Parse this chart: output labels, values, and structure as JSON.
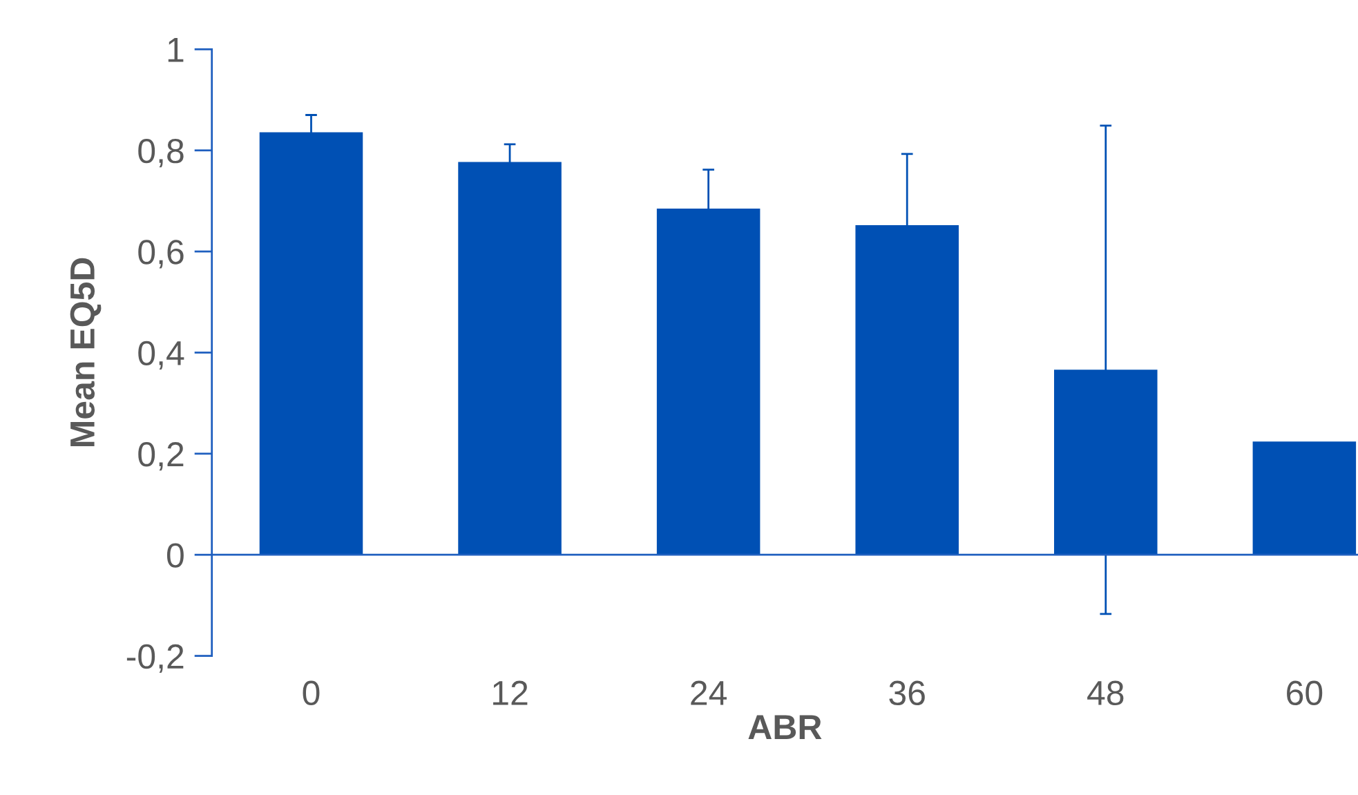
{
  "chart_data": {
    "type": "bar",
    "xlabel": "ABR",
    "ylabel": "Mean EQ5D",
    "categories": [
      "0",
      "12",
      "24",
      "36",
      "48",
      "60"
    ],
    "values": [
      0.836,
      0.777,
      0.685,
      0.652,
      0.366,
      0.224
    ],
    "errors": [
      0.034,
      0.035,
      0.077,
      0.141,
      0.483,
      null
    ],
    "color": "#0050b4",
    "ylim": [
      -0.2,
      1
    ],
    "yticks": [
      {
        "value": -0.2,
        "label": "-0,2"
      },
      0,
      {
        "value": 0.2,
        "label": "0,2"
      },
      {
        "value": 0.4,
        "label": "0,4"
      },
      {
        "value": 0.6,
        "label": "0,6"
      },
      {
        "value": 0.8,
        "label": "0,8"
      },
      1
    ],
    "ref_lines": [
      {
        "axis": "y",
        "value": 0,
        "color": "#1f5fbf"
      }
    ],
    "legend": false
  }
}
